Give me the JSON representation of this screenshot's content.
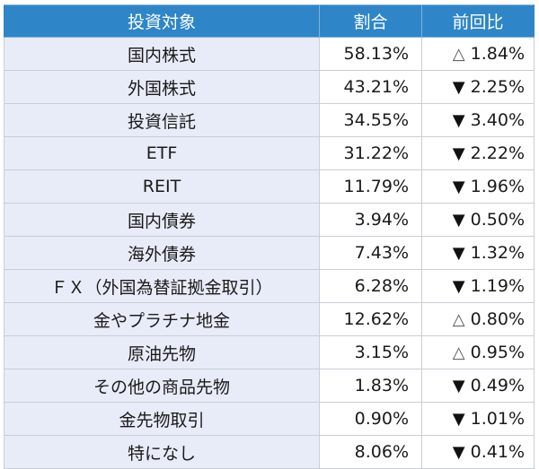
{
  "table": {
    "headers": [
      "投資対象",
      "割合",
      "前回比"
    ],
    "rows": [
      {
        "label": "国内株式",
        "share": "58.13%",
        "direction": "up",
        "arrow": "△",
        "change": "1.84%"
      },
      {
        "label": "外国株式",
        "share": "43.21%",
        "direction": "down",
        "arrow": "▼",
        "change": "2.25%"
      },
      {
        "label": "投資信託",
        "share": "34.55%",
        "direction": "down",
        "arrow": "▼",
        "change": "3.40%"
      },
      {
        "label": "ETF",
        "share": "31.22%",
        "direction": "down",
        "arrow": "▼",
        "change": "2.22%"
      },
      {
        "label": "REIT",
        "share": "11.79%",
        "direction": "down",
        "arrow": "▼",
        "change": "1.96%"
      },
      {
        "label": "国内債券",
        "share": "3.94%",
        "direction": "down",
        "arrow": "▼",
        "change": "0.50%"
      },
      {
        "label": "海外債券",
        "share": "7.43%",
        "direction": "down",
        "arrow": "▼",
        "change": "1.32%"
      },
      {
        "label": "ＦＸ（外国為替証拠金取引）",
        "share": "6.28%",
        "direction": "down",
        "arrow": "▼",
        "change": "1.19%"
      },
      {
        "label": "金やプラチナ地金",
        "share": "12.62%",
        "direction": "up",
        "arrow": "△",
        "change": "0.80%"
      },
      {
        "label": "原油先物",
        "share": "3.15%",
        "direction": "up",
        "arrow": "△",
        "change": "0.95%"
      },
      {
        "label": "その他の商品先物",
        "share": "1.83%",
        "direction": "down",
        "arrow": "▼",
        "change": "0.49%"
      },
      {
        "label": "金先物取引",
        "share": "0.90%",
        "direction": "down",
        "arrow": "▼",
        "change": "1.01%"
      },
      {
        "label": "特になし",
        "share": "8.06%",
        "direction": "down",
        "arrow": "▼",
        "change": "0.41%"
      }
    ]
  },
  "colors": {
    "header_bg": "#2E86C8",
    "header_text": "#FFFFFF",
    "label_bg": "#E8ECF8",
    "value_bg": "#FFFFFF",
    "border": "#C9CDD6"
  }
}
